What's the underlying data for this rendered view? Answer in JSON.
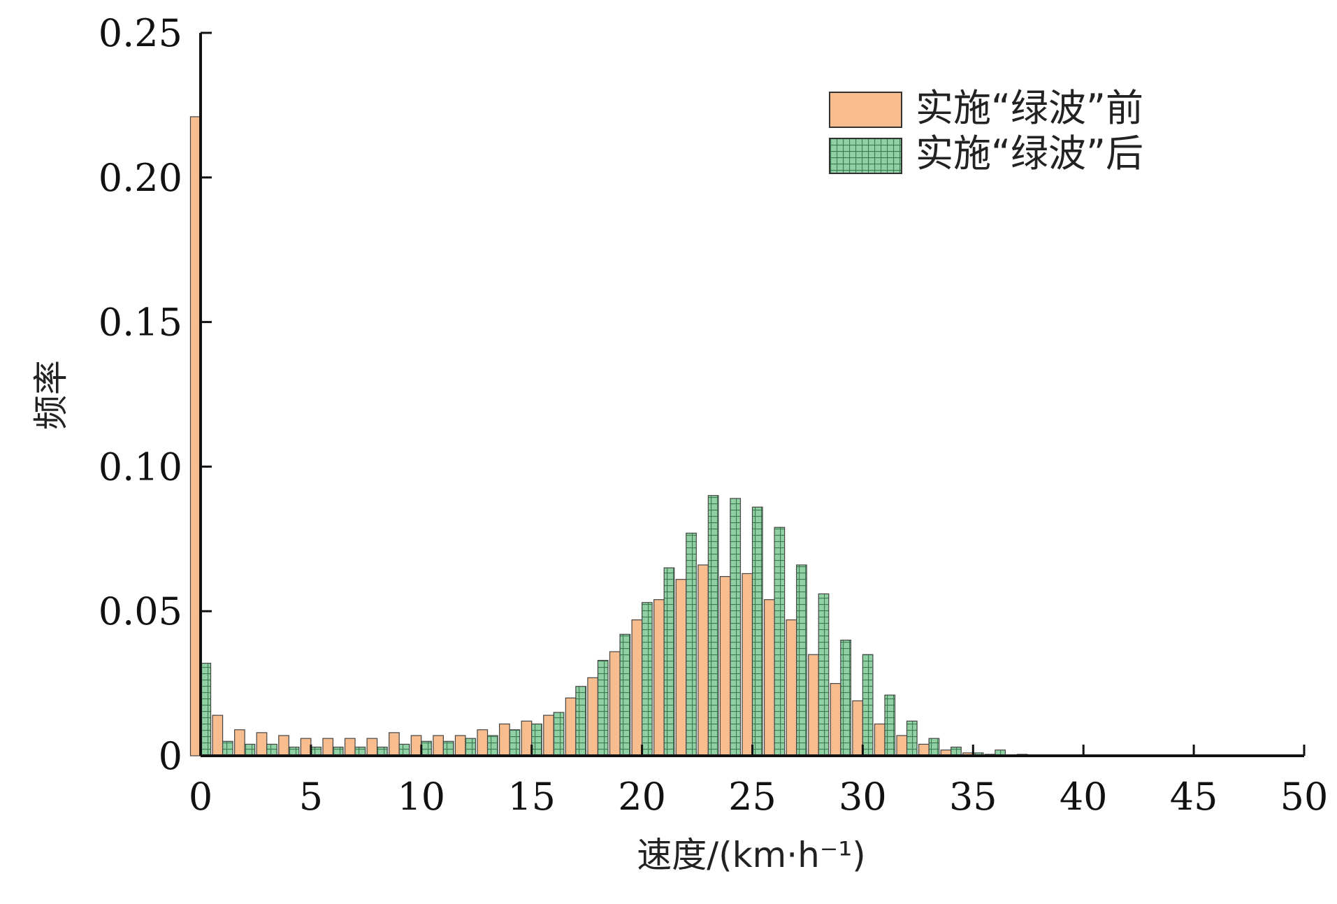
{
  "chart_data": {
    "type": "bar",
    "xlabel": "速度/(km·h⁻¹)",
    "ylabel": "频率",
    "xlim": [
      0,
      50
    ],
    "ylim": [
      0,
      0.25
    ],
    "x_ticks": [
      "0",
      "5",
      "10",
      "15",
      "20",
      "25",
      "30",
      "35",
      "40",
      "45",
      "50"
    ],
    "y_ticks": [
      "0",
      "0.05",
      "0.10",
      "0.15",
      "0.20",
      "0.25"
    ],
    "grid": false,
    "legend_position": "top-right",
    "categories": [
      "0",
      "1",
      "2",
      "3",
      "4",
      "5",
      "6",
      "7",
      "8",
      "9",
      "10",
      "11",
      "12",
      "13",
      "14",
      "15",
      "16",
      "17",
      "18",
      "19",
      "20",
      "21",
      "22",
      "23",
      "24",
      "25",
      "26",
      "27",
      "28",
      "29",
      "30",
      "31",
      "32",
      "33",
      "34",
      "35",
      "36",
      "37",
      "38",
      "39",
      "40",
      "41",
      "42",
      "43",
      "44",
      "45",
      "46",
      "47",
      "48",
      "49"
    ],
    "series": [
      {
        "name": "实施“绿波”前",
        "color": "#f7bd8f",
        "pattern": "solid",
        "values": [
          0.221,
          0.014,
          0.009,
          0.008,
          0.007,
          0.006,
          0.006,
          0.006,
          0.006,
          0.008,
          0.007,
          0.007,
          0.007,
          0.009,
          0.011,
          0.012,
          0.014,
          0.02,
          0.027,
          0.036,
          0.047,
          0.054,
          0.061,
          0.066,
          0.062,
          0.063,
          0.054,
          0.047,
          0.035,
          0.025,
          0.019,
          0.011,
          0.007,
          0.004,
          0.002,
          0.001,
          0.0005,
          0.0003,
          0.0002,
          0.0002,
          0.0001,
          0.0001,
          0.0001,
          0.0001,
          0.0001,
          0.0001,
          0.0001,
          0.0001,
          0.0001,
          0.0001
        ]
      },
      {
        "name": "实施“绿波”后",
        "color": "#8fd1a3",
        "pattern": "grid",
        "values": [
          0.032,
          0.005,
          0.004,
          0.004,
          0.003,
          0.003,
          0.003,
          0.003,
          0.003,
          0.004,
          0.005,
          0.005,
          0.006,
          0.007,
          0.009,
          0.011,
          0.015,
          0.024,
          0.033,
          0.042,
          0.053,
          0.065,
          0.077,
          0.09,
          0.089,
          0.086,
          0.079,
          0.066,
          0.056,
          0.04,
          0.035,
          0.021,
          0.012,
          0.006,
          0.003,
          0.001,
          0.002,
          0.0005,
          0.0003,
          0.0002,
          0.0001,
          0.0001,
          0.0001,
          0.0001,
          0.0001,
          0.0001,
          0.0001,
          0.0001,
          0.0001,
          0.0001
        ]
      }
    ]
  }
}
